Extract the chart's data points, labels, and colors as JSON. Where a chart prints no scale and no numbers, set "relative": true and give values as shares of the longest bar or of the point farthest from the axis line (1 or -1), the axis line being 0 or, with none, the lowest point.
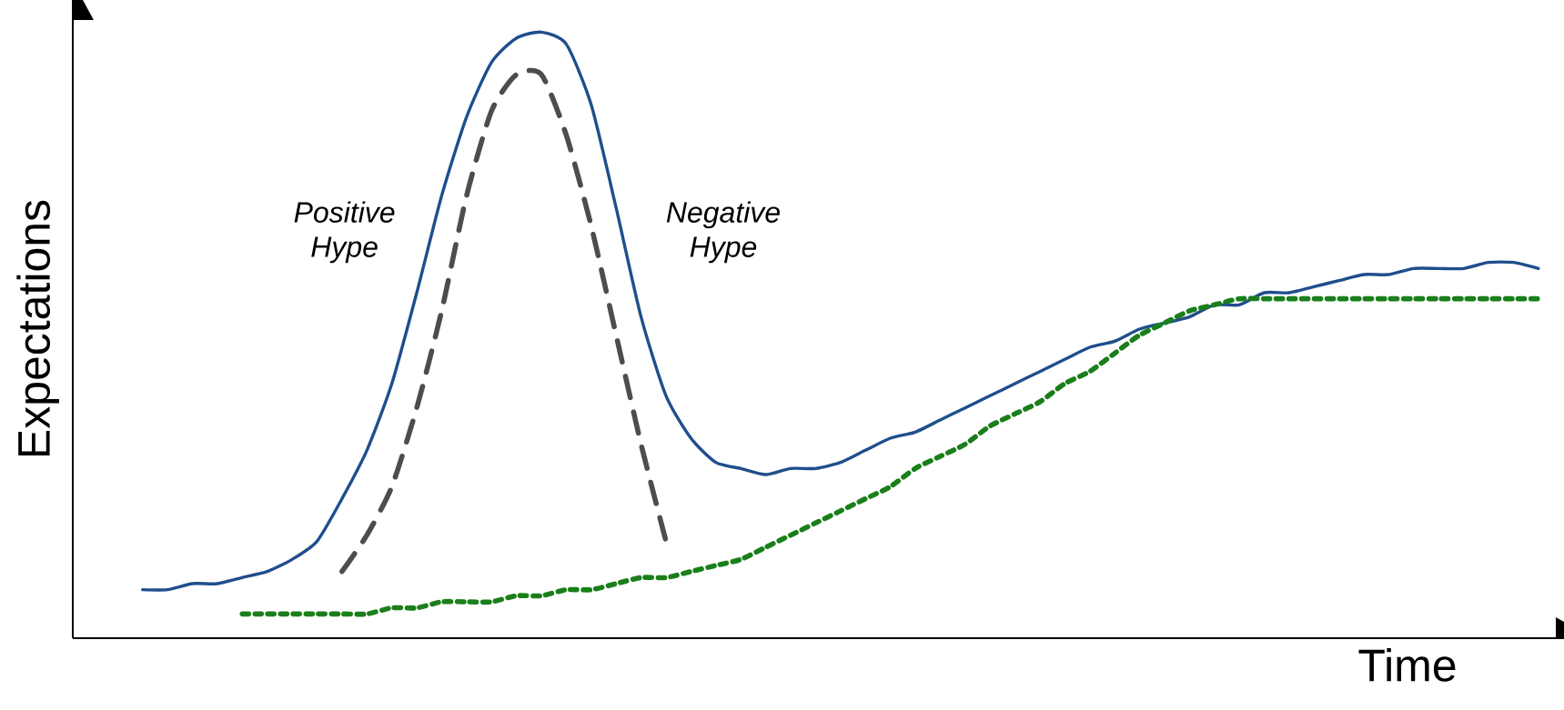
{
  "chart_data": {
    "type": "line",
    "relative": true,
    "xlabel": "Time",
    "ylabel": "Expectations",
    "annotations": [
      "Positive Hype",
      "Negative Hype"
    ],
    "categories": [
      null,
      null,
      null,
      null,
      null,
      null,
      null,
      null,
      null,
      null,
      null,
      null,
      null,
      null,
      null,
      null,
      null,
      null,
      null,
      null,
      null,
      null,
      null,
      null,
      null,
      null,
      null,
      null,
      null,
      null,
      null,
      null,
      null,
      null,
      null,
      null,
      null,
      null,
      null,
      null,
      null,
      null,
      null,
      null,
      null,
      null,
      null,
      null,
      null,
      null,
      null,
      null,
      null,
      null,
      null,
      null,
      null
    ],
    "series": [
      {
        "color": "#1f4e8c",
        "line_style": "solid",
        "values": [
          0.08,
          0.08,
          0.09,
          0.09,
          0.1,
          0.11,
          0.13,
          0.16,
          0.23,
          0.31,
          0.42,
          0.57,
          0.73,
          0.86,
          0.95,
          0.99,
          1,
          0.98,
          0.88,
          0.71,
          0.53,
          0.4,
          0.33,
          0.29,
          0.28,
          0.27,
          0.28,
          0.28,
          0.29,
          0.31,
          0.33,
          0.34,
          0.36,
          0.38,
          0.4,
          0.42,
          0.44,
          0.46,
          0.48,
          0.49,
          0.51,
          0.52,
          0.53,
          0.55,
          0.55,
          0.57,
          0.57,
          0.58,
          0.59,
          0.6,
          0.6,
          0.61,
          0.61,
          0.61,
          0.62,
          0.62,
          0.61
        ]
      },
      {
        "color": "#4d4d4d",
        "line_style": "dashed",
        "values": [
          null,
          null,
          null,
          null,
          null,
          null,
          null,
          null,
          0.11,
          0.17,
          0.25,
          0.38,
          0.54,
          0.73,
          0.87,
          0.93,
          0.93,
          0.83,
          0.68,
          0.5,
          0.32,
          0.16,
          null,
          null,
          null,
          null,
          null,
          null,
          null,
          null,
          null,
          null,
          null,
          null,
          null,
          null,
          null,
          null,
          null,
          null,
          null,
          null,
          null,
          null,
          null,
          null,
          null,
          null,
          null,
          null,
          null,
          null,
          null,
          null,
          null,
          null,
          null
        ]
      },
      {
        "color": "#1a7f1a",
        "line_style": "dotted",
        "values": [
          null,
          null,
          null,
          null,
          0.04,
          0.04,
          0.04,
          0.04,
          0.04,
          0.04,
          0.05,
          0.05,
          0.06,
          0.06,
          0.06,
          0.07,
          0.07,
          0.08,
          0.08,
          0.09,
          0.1,
          0.1,
          0.11,
          0.12,
          0.13,
          0.15,
          0.17,
          0.19,
          0.21,
          0.23,
          0.25,
          0.28,
          0.3,
          0.32,
          0.35,
          0.37,
          0.39,
          0.42,
          0.44,
          0.47,
          0.5,
          0.52,
          0.54,
          0.55,
          0.56,
          0.56,
          0.56,
          0.56,
          0.56,
          0.56,
          0.56,
          0.56,
          0.56,
          0.56,
          0.56,
          0.56,
          0.56
        ]
      }
    ]
  }
}
